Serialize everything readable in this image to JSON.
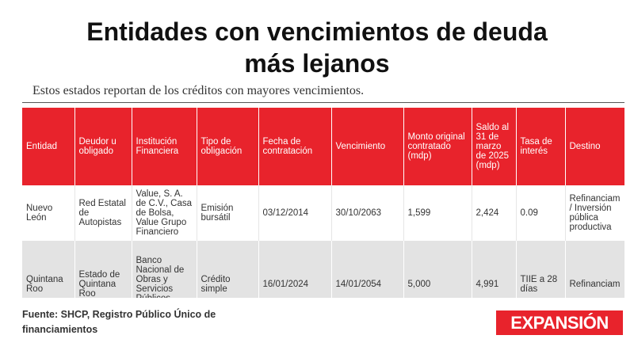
{
  "header": {
    "title_line1": "Entidades con vencimientos de deuda",
    "title_line2": "más lejanos",
    "subtitle": "Estos estados reportan de los créditos con mayores vencimientos."
  },
  "table": {
    "columns": [
      "Entidad",
      "Deudor u obligado",
      "Institución Financiera",
      "Tipo de obligación",
      "Fecha de contratación",
      "Vencimiento",
      "Monto original contratado (mdp)",
      "Saldo al 31 de marzo de 2025 (mdp)",
      "Tasa de interés",
      "Destino"
    ],
    "rows": [
      [
        "Nuevo León",
        "Red Estatal de Autopistas",
        "Value, S. A. de C.V., Casa de Bolsa, Value Grupo Financiero",
        "Emisión bursátil",
        "03/12/2014",
        "30/10/2063",
        "1,599",
        "2,424",
        "0.09",
        "Refinanciam / Inversión pública productiva"
      ],
      [
        "Quintana Roo",
        "Estado de Quintana Roo",
        "Banco Nacional de Obras y Servicios Públicos, S.N.C.",
        "Crédito simple",
        "16/01/2024",
        "14/01/2054",
        "5,000",
        "4,991",
        "TIIE a 28 días",
        "Refinanciam"
      ]
    ]
  },
  "footer": {
    "source": "Fuente: SHCP, Registro Público Único de financiamientos",
    "logo": "EXPANSIÓN"
  },
  "colors": {
    "accent": "#e8232c",
    "row_alt": "#e3e3e3"
  }
}
